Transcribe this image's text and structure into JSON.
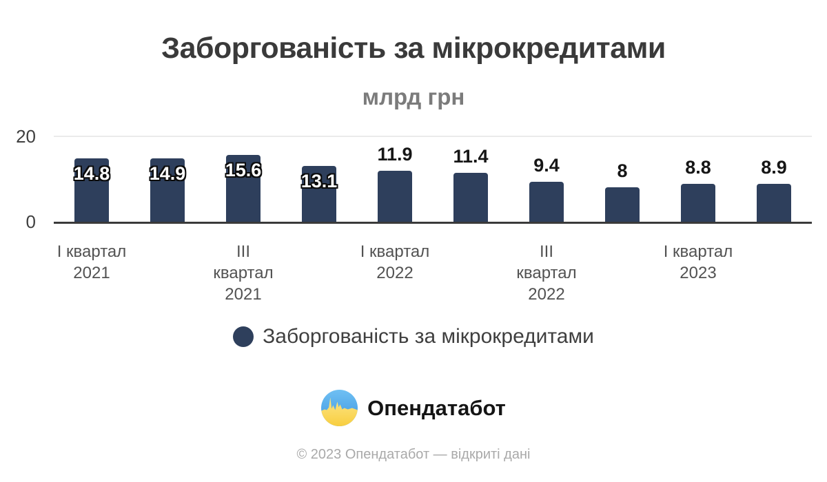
{
  "title": "Заборгованість за мікрокредитами",
  "subtitle": "млрд грн",
  "chart_data": {
    "type": "bar",
    "title": "Заборгованість за мікрокредитами",
    "units": "млрд грн",
    "values": [
      14.8,
      14.9,
      15.6,
      13.1,
      11.9,
      11.4,
      9.4,
      8,
      8.8,
      8.9
    ],
    "data_labels": [
      "14.8",
      "14.9",
      "15.6",
      "13.1",
      "11.9",
      "11.4",
      "9.4",
      "8",
      "8.8",
      "8.9"
    ],
    "label_placement": [
      "inside",
      "inside",
      "inside",
      "inside",
      "outside",
      "outside",
      "outside",
      "outside",
      "outside",
      "outside"
    ],
    "x_tick_labels": [
      "I квартал\n2021",
      "",
      "III квартал\n2021",
      "",
      "I квартал\n2022",
      "",
      "III квартал\n2022",
      "",
      "I квартал\n2023",
      ""
    ],
    "ylim": [
      0,
      20
    ],
    "y_ticks": [
      {
        "value": 20,
        "label": "20"
      },
      {
        "value": 0,
        "label": "0"
      }
    ],
    "bar_color": "#2e3f5c",
    "grid": "single horizontal gridline at y=20",
    "legend_position": "bottom-center",
    "legend": [
      {
        "label": "Заборгованість за мікрокредитами",
        "color": "#2e3f5c"
      }
    ]
  },
  "branding": {
    "logo_text": "Опендатабот",
    "logo_icon": "opendatabot-pulse-circle",
    "logo_blue": "#47a3e9",
    "logo_yellow": "#f8ce3f"
  },
  "footer": {
    "text": "© 2023 Опендатабот — відкриті дані"
  }
}
